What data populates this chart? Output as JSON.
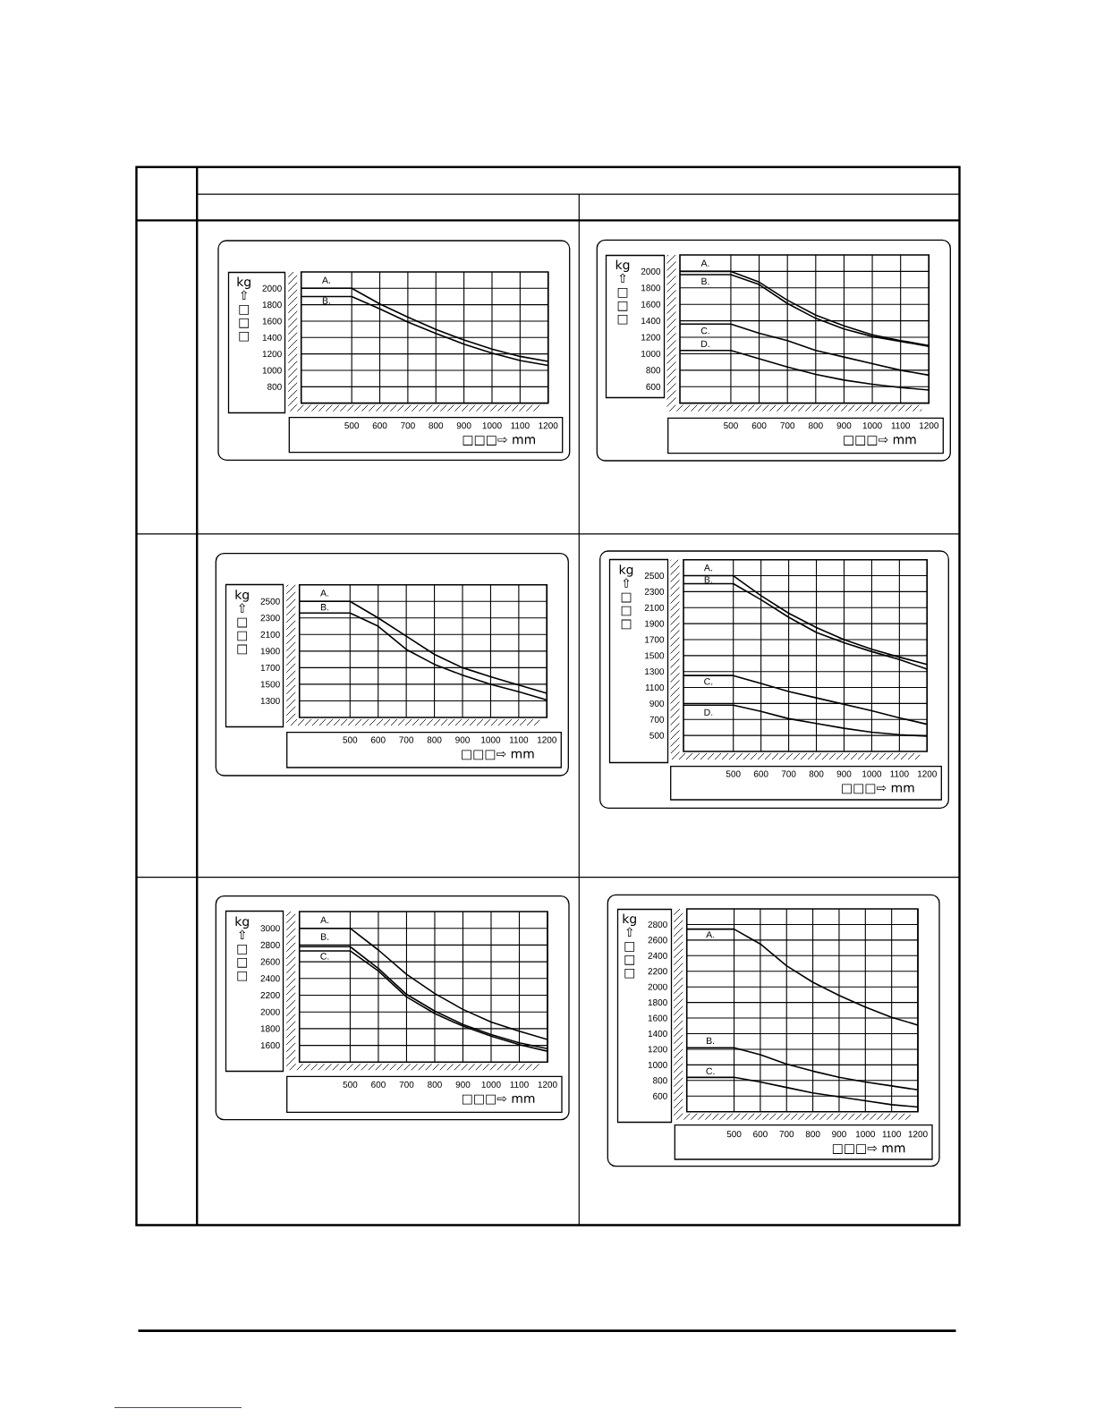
{
  "chart_data": [
    {
      "type": "line",
      "xlabel": "□□□⇨ mm",
      "ylabel": "kg ⇧ □ □ □",
      "x": [
        320,
        500,
        600,
        700,
        800,
        900,
        1000,
        1100,
        1200
      ],
      "xlim": [
        320,
        1200
      ],
      "ylim": [
        600,
        2200
      ],
      "xticks": [
        500,
        600,
        700,
        800,
        900,
        1000,
        1100,
        1200
      ],
      "yticks": [
        800,
        1000,
        1200,
        1400,
        1600,
        1800,
        2000
      ],
      "grid": true,
      "series": [
        {
          "name": "A.",
          "color": "#000000",
          "values": [
            2000,
            2000,
            1810,
            1650,
            1500,
            1370,
            1260,
            1170,
            1110
          ]
        },
        {
          "name": "B.",
          "color": "#000000",
          "values": [
            1900,
            1900,
            1750,
            1590,
            1450,
            1320,
            1210,
            1120,
            1060
          ]
        }
      ]
    },
    {
      "type": "line",
      "xlabel": "□□□⇨ mm",
      "ylabel": "kg ⇧ □ □ □",
      "x": [
        320,
        500,
        600,
        700,
        800,
        900,
        1000,
        1100,
        1200
      ],
      "xlim": [
        320,
        1200
      ],
      "ylim": [
        400,
        2200
      ],
      "xticks": [
        500,
        600,
        700,
        800,
        900,
        1000,
        1100,
        1200
      ],
      "yticks": [
        600,
        800,
        1000,
        1200,
        1400,
        1600,
        1800,
        2000
      ],
      "grid": true,
      "series": [
        {
          "name": "A.",
          "color": "#000000",
          "values": [
            2000,
            2000,
            1870,
            1650,
            1470,
            1340,
            1230,
            1160,
            1100
          ]
        },
        {
          "name": "B.",
          "color": "#000000",
          "values": [
            1960,
            1960,
            1840,
            1610,
            1430,
            1300,
            1210,
            1150,
            1090
          ]
        },
        {
          "name": "C.",
          "color": "#000000",
          "values": [
            1360,
            1360,
            1250,
            1160,
            1040,
            960,
            880,
            800,
            740
          ]
        },
        {
          "name": "D.",
          "color": "#000000",
          "values": [
            1040,
            1040,
            940,
            840,
            750,
            680,
            630,
            590,
            560
          ]
        }
      ]
    },
    {
      "type": "line",
      "xlabel": "□□□⇨ mm",
      "ylabel": "kg ⇧ □ □ □",
      "x": [
        320,
        500,
        600,
        700,
        800,
        900,
        1000,
        1100,
        1200
      ],
      "xlim": [
        320,
        1200
      ],
      "ylim": [
        1100,
        2700
      ],
      "xticks": [
        500,
        600,
        700,
        800,
        900,
        1000,
        1100,
        1200
      ],
      "yticks": [
        1300,
        1500,
        1700,
        1900,
        2100,
        2300,
        2500
      ],
      "grid": true,
      "series": [
        {
          "name": "A.",
          "color": "#000000",
          "values": [
            2500,
            2500,
            2300,
            2080,
            1860,
            1700,
            1590,
            1490,
            1390
          ]
        },
        {
          "name": "B.",
          "color": "#000000",
          "values": [
            2360,
            2360,
            2200,
            1920,
            1740,
            1610,
            1500,
            1410,
            1310
          ]
        }
      ]
    },
    {
      "type": "line",
      "xlabel": "□□□⇨ mm",
      "ylabel": "kg ⇧ □ □ □",
      "x": [
        320,
        500,
        600,
        700,
        800,
        900,
        1000,
        1100,
        1200
      ],
      "xlim": [
        320,
        1200
      ],
      "ylim": [
        300,
        2700
      ],
      "xticks": [
        500,
        600,
        700,
        800,
        900,
        1000,
        1100,
        1200
      ],
      "yticks": [
        500,
        700,
        900,
        1100,
        1300,
        1500,
        1700,
        1900,
        2100,
        2300,
        2500
      ],
      "grid": true,
      "series": [
        {
          "name": "A.",
          "color": "#000000",
          "values": [
            2500,
            2500,
            2250,
            2030,
            1850,
            1700,
            1580,
            1480,
            1390
          ]
        },
        {
          "name": "B.",
          "color": "#000000",
          "values": [
            2400,
            2400,
            2200,
            1980,
            1790,
            1660,
            1550,
            1450,
            1330
          ]
        },
        {
          "name": "C.",
          "color": "#000000",
          "values": [
            1250,
            1250,
            1150,
            1050,
            970,
            890,
            810,
            720,
            640
          ]
        },
        {
          "name": "D.",
          "color": "#000000",
          "values": [
            880,
            880,
            800,
            710,
            650,
            590,
            540,
            510,
            490
          ]
        }
      ]
    },
    {
      "type": "line",
      "xlabel": "□□□⇨ mm",
      "ylabel": "kg ⇧ □ □ □",
      "x": [
        320,
        500,
        600,
        700,
        800,
        900,
        1000,
        1100,
        1200
      ],
      "xlim": [
        320,
        1200
      ],
      "ylim": [
        1400,
        3200
      ],
      "xticks": [
        500,
        600,
        700,
        800,
        900,
        1000,
        1100,
        1200
      ],
      "yticks": [
        1600,
        1800,
        2000,
        2200,
        2400,
        2600,
        2800,
        3000
      ],
      "grid": true,
      "series": [
        {
          "name": "A.",
          "color": "#000000",
          "values": [
            3000,
            3000,
            2740,
            2450,
            2220,
            2030,
            1880,
            1770,
            1670
          ]
        },
        {
          "name": "B.",
          "color": "#000000",
          "values": [
            2780,
            2780,
            2520,
            2210,
            2010,
            1850,
            1730,
            1630,
            1560
          ]
        },
        {
          "name": "C.",
          "color": "#000000",
          "values": [
            2730,
            2730,
            2490,
            2180,
            1980,
            1830,
            1710,
            1610,
            1530
          ]
        }
      ]
    },
    {
      "type": "line",
      "xlabel": "□□□⇨ mm",
      "ylabel": "kg ⇧ □ □ □",
      "x": [
        320,
        500,
        600,
        700,
        800,
        900,
        1000,
        1100,
        1200
      ],
      "xlim": [
        320,
        1200
      ],
      "ylim": [
        400,
        3000
      ],
      "xticks": [
        500,
        600,
        700,
        800,
        900,
        1000,
        1100,
        1200
      ],
      "yticks": [
        600,
        800,
        1000,
        1200,
        1400,
        1600,
        1800,
        2000,
        2200,
        2400,
        2600,
        2800
      ],
      "grid": true,
      "series": [
        {
          "name": "A.",
          "color": "#000000",
          "values": [
            2740,
            2740,
            2550,
            2270,
            2060,
            1890,
            1740,
            1610,
            1510
          ]
        },
        {
          "name": "B.",
          "color": "#000000",
          "values": [
            1220,
            1220,
            1130,
            1010,
            920,
            840,
            780,
            730,
            680
          ]
        },
        {
          "name": "C.",
          "color": "#000000",
          "values": [
            840,
            840,
            780,
            710,
            640,
            590,
            540,
            490,
            460
          ]
        }
      ]
    }
  ]
}
